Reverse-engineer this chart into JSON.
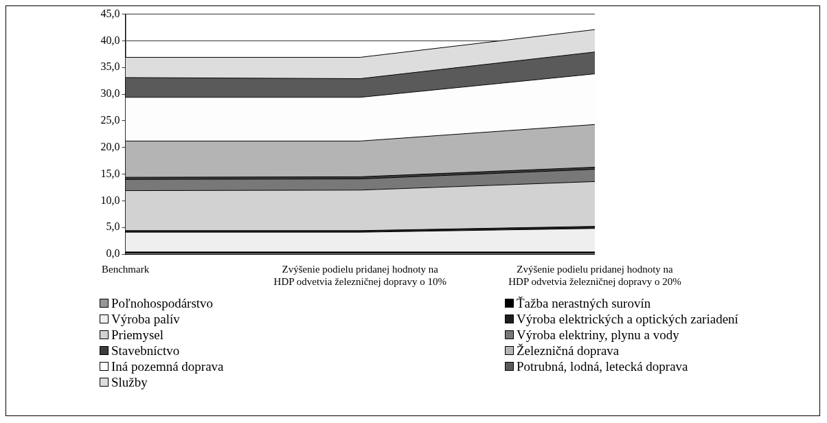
{
  "chart_data": {
    "type": "area",
    "stacked": true,
    "grid": "y",
    "legend": "bottom",
    "categories": [
      "Benchmark",
      "Zvýšenie podielu pridanej hodnoty na HDP odvetvia železničnej dopravy o 10%",
      "Zvýšenie podielu pridanej hodnoty na HDP odvetvia železničnej dopravy o 20%"
    ],
    "ylim": [
      0,
      45
    ],
    "yticks": [
      {
        "value": 0,
        "label": "0,0"
      },
      {
        "value": 5,
        "label": "5,0"
      },
      {
        "value": 10,
        "label": "10,0"
      },
      {
        "value": 15,
        "label": "15,0"
      },
      {
        "value": 20,
        "label": "20,0"
      },
      {
        "value": 25,
        "label": "25,0"
      },
      {
        "value": 30,
        "label": "30,0"
      },
      {
        "value": 35,
        "label": "35,0"
      },
      {
        "value": 40,
        "label": "40,0"
      },
      {
        "value": 45,
        "label": "45,0"
      }
    ],
    "series": [
      {
        "name": "Poľnohospodárstvo",
        "color": "#969696",
        "values": [
          0.2,
          0.2,
          0.2
        ]
      },
      {
        "name": "Ťažba nerastných surovín",
        "color": "#000000",
        "values": [
          0.2,
          0.2,
          0.2
        ]
      },
      {
        "name": "Výroba palív",
        "color": "#efefef",
        "values": [
          3.7,
          3.7,
          4.4
        ]
      },
      {
        "name": "Výroba elektrických a optických zariadení",
        "color": "#1e1e1e",
        "values": [
          0.3,
          0.3,
          0.4
        ]
      },
      {
        "name": "Priemysel",
        "color": "#d2d2d2",
        "values": [
          7.5,
          7.6,
          8.4
        ]
      },
      {
        "name": "Výroba elektriny, plynu a vody",
        "color": "#787878",
        "values": [
          2.1,
          2.1,
          2.3
        ]
      },
      {
        "name": "Stavebníctvo",
        "color": "#3c3c3c",
        "values": [
          0.4,
          0.4,
          0.4
        ]
      },
      {
        "name": "Železničná doprava",
        "color": "#b4b4b4",
        "values": [
          6.8,
          6.7,
          8.0
        ]
      },
      {
        "name": "Iná pozemná doprava",
        "color": "#fdfdfd",
        "values": [
          8.2,
          8.2,
          9.5
        ]
      },
      {
        "name": "Potrubná, lodná, letecká doprava",
        "color": "#5a5a5a",
        "values": [
          3.7,
          3.5,
          4.1
        ]
      },
      {
        "name": "Služby",
        "color": "#dddddd",
        "values": [
          3.8,
          4.0,
          4.2
        ]
      }
    ]
  }
}
